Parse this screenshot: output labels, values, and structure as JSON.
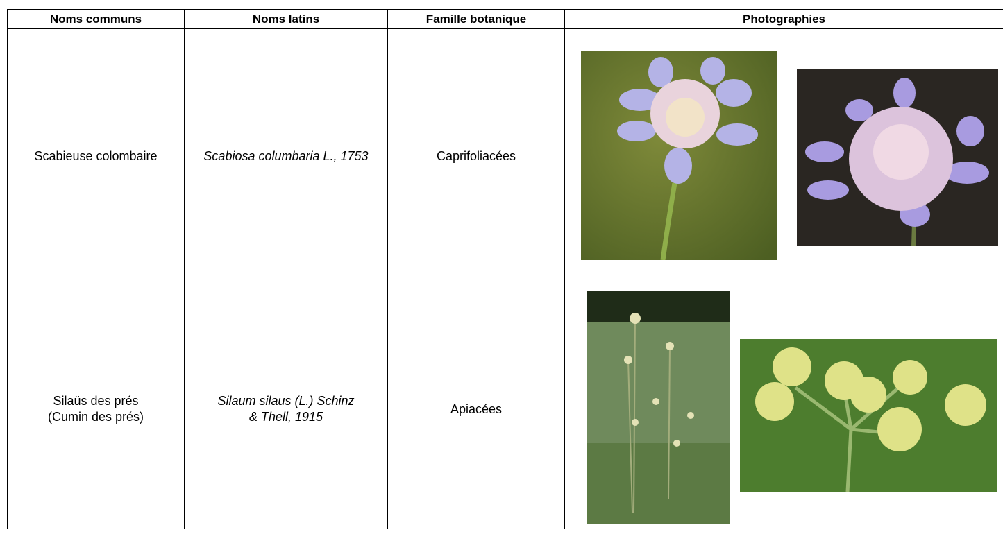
{
  "table": {
    "header": [
      "Noms communs",
      "Noms latins",
      "Famille botanique",
      "Photographies"
    ],
    "rows": [
      {
        "common_name": [
          "Scabieuse colombaire"
        ],
        "latin_name": "Scabiosa columbaria L., 1753",
        "family": "Caprifoliacées"
      },
      {
        "common_name": [
          "Silaüs des prés",
          "(Cumin des prés)"
        ],
        "latin_name": "Silaum silaus (L.) Schinz & Thell, 1915",
        "family": "Apiacées"
      }
    ]
  }
}
